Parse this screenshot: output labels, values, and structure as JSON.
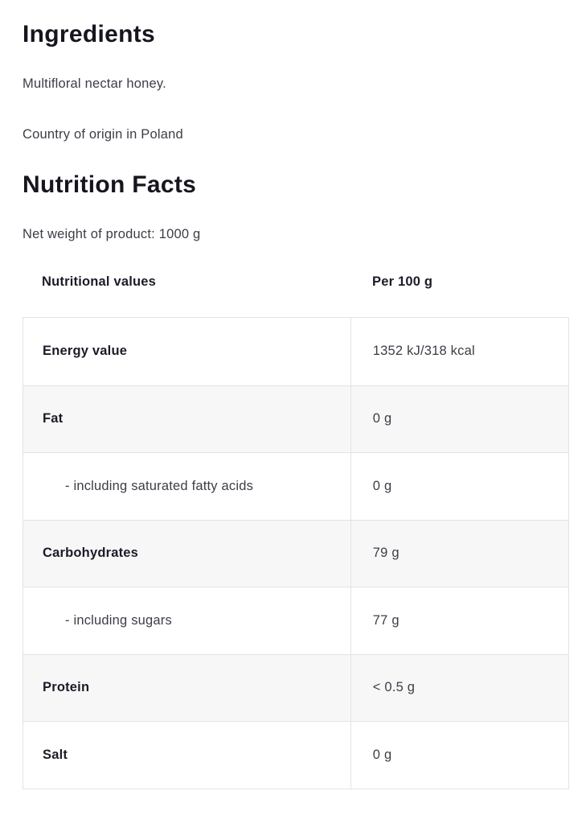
{
  "ingredients": {
    "title": "Ingredients",
    "description": "Multifloral nectar honey.",
    "origin": "Country of origin in Poland"
  },
  "nutrition": {
    "title": "Nutrition Facts",
    "net_weight": "Net weight of product: 1000 g",
    "table": {
      "header": {
        "name_col": "Nutritional values",
        "per_col": "Per 100 g"
      },
      "rows": [
        {
          "label": "Energy value",
          "value": "1352 kJ/318 kcal",
          "bold": true,
          "indent": false
        },
        {
          "label": "Fat",
          "value": "0 g",
          "bold": true,
          "indent": false
        },
        {
          "label": "- including saturated fatty acids",
          "value": "0 g",
          "bold": false,
          "indent": true
        },
        {
          "label": "Carbohydrates",
          "value": "79 g",
          "bold": true,
          "indent": false
        },
        {
          "label": "- including sugars",
          "value": "77 g",
          "bold": false,
          "indent": true
        },
        {
          "label": "Protein",
          "value": "< 0.5 g",
          "bold": true,
          "indent": false
        },
        {
          "label": "Salt",
          "value": "0 g",
          "bold": true,
          "indent": false
        }
      ]
    }
  },
  "colors": {
    "background": "#ffffff",
    "heading": "#16161f",
    "body_text": "#3d3d47",
    "row_alt_bg": "#f7f7f8",
    "border": "#e3e3e5"
  }
}
